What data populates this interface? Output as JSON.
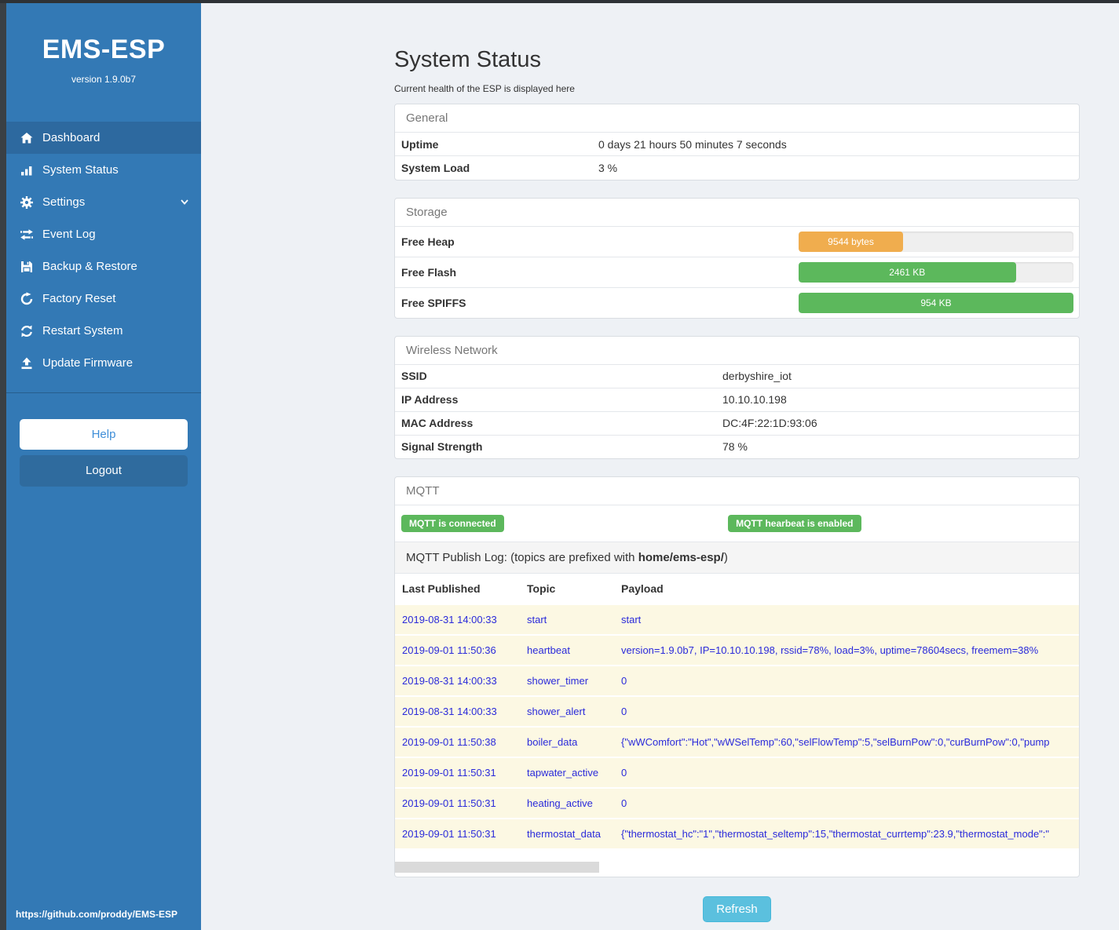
{
  "colors": {
    "sidebar": "#3379b5",
    "sidebar_active": "#2d699f",
    "success": "#5cb85c",
    "warning": "#f0ad4e",
    "info": "#5bc0de",
    "log_text": "#2a2ada"
  },
  "sidebar": {
    "title": "EMS-ESP",
    "version": "version 1.9.0b7",
    "items": [
      {
        "label": "Dashboard",
        "icon": "home-icon",
        "active": true
      },
      {
        "label": "System Status",
        "icon": "chart-icon",
        "active": false
      },
      {
        "label": "Settings",
        "icon": "gear-icon",
        "active": false,
        "chevron": "chevron-down-icon"
      },
      {
        "label": "Event Log",
        "icon": "transfer-arrows-icon",
        "active": false
      },
      {
        "label": "Backup & Restore",
        "icon": "floppy-save-icon",
        "active": false
      },
      {
        "label": "Factory Reset",
        "icon": "redo-arrow-icon",
        "active": false
      },
      {
        "label": "Restart System",
        "icon": "sync-arrows-icon",
        "active": false
      },
      {
        "label": "Update Firmware",
        "icon": "upload-icon",
        "active": false
      }
    ],
    "help_label": "Help",
    "logout_label": "Logout",
    "footer_link": "https://github.com/proddy/EMS-ESP"
  },
  "header": {
    "title": "System Status",
    "subtitle": "Current health of the ESP is displayed here"
  },
  "general": {
    "heading": "General",
    "rows": [
      {
        "label": "Uptime",
        "value": "0 days 21 hours 50 minutes 7 seconds"
      },
      {
        "label": "System Load",
        "value": "3 %"
      }
    ]
  },
  "storage": {
    "heading": "Storage",
    "rows": [
      {
        "label": "Free Heap",
        "value": "9544 bytes",
        "percent": 38,
        "color": "#f0ad4e"
      },
      {
        "label": "Free Flash",
        "value": "2461 KB",
        "percent": 79,
        "color": "#5cb85c"
      },
      {
        "label": "Free SPIFFS",
        "value": "954 KB",
        "percent": 100,
        "color": "#5cb85c"
      }
    ]
  },
  "wireless": {
    "heading": "Wireless Network",
    "rows": [
      {
        "label": "SSID",
        "value": "derbyshire_iot"
      },
      {
        "label": "IP Address",
        "value": "10.10.10.198"
      },
      {
        "label": "MAC Address",
        "value": "DC:4F:22:1D:93:06"
      },
      {
        "label": "Signal Strength",
        "value": "78 %"
      }
    ]
  },
  "mqtt": {
    "heading": "MQTT",
    "badges": [
      {
        "label": "MQTT is connected"
      },
      {
        "label": "MQTT hearbeat is enabled"
      }
    ],
    "log_title_prefix": "MQTT Publish Log: (topics are prefixed with ",
    "log_title_bold": "home/ems-esp/",
    "log_title_suffix": ")",
    "columns": [
      "Last Published",
      "Topic",
      "Payload"
    ],
    "rows": [
      [
        "2019-08-31 14:00:33",
        "start",
        "start"
      ],
      [
        "2019-09-01 11:50:36",
        "heartbeat",
        "version=1.9.0b7, IP=10.10.10.198, rssid=78%, load=3%, uptime=78604secs, freemem=38%"
      ],
      [
        "2019-08-31 14:00:33",
        "shower_timer",
        "0"
      ],
      [
        "2019-08-31 14:00:33",
        "shower_alert",
        "0"
      ],
      [
        "2019-09-01 11:50:38",
        "boiler_data",
        "{\"wWComfort\":\"Hot\",\"wWSelTemp\":60,\"selFlowTemp\":5,\"selBurnPow\":0,\"curBurnPow\":0,\"pump"
      ],
      [
        "2019-09-01 11:50:31",
        "tapwater_active",
        "0"
      ],
      [
        "2019-09-01 11:50:31",
        "heating_active",
        "0"
      ],
      [
        "2019-09-01 11:50:31",
        "thermostat_data",
        "{\"thermostat_hc\":\"1\",\"thermostat_seltemp\":15,\"thermostat_currtemp\":23.9,\"thermostat_mode\":\""
      ]
    ]
  },
  "refresh_label": "Refresh"
}
